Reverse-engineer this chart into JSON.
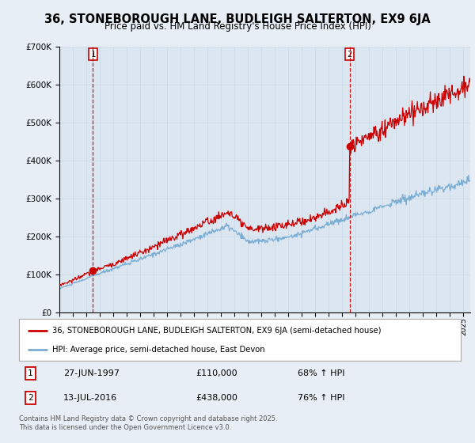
{
  "title": "36, STONEBOROUGH LANE, BUDLEIGH SALTERTON, EX9 6JA",
  "subtitle": "Price paid vs. HM Land Registry's House Price Index (HPI)",
  "bg_color": "#e8eef5",
  "plot_bg_color": "#dce6f0",
  "sale1_date": 1997.49,
  "sale1_price": 110000,
  "sale1_label": "1",
  "sale2_date": 2016.54,
  "sale2_price": 438000,
  "sale2_label": "2",
  "legend_line1": "36, STONEBOROUGH LANE, BUDLEIGH SALTERTON, EX9 6JA (semi-detached house)",
  "legend_line2": "HPI: Average price, semi-detached house, East Devon",
  "table_row1": [
    "1",
    "27-JUN-1997",
    "£110,000",
    "68% ↑ HPI"
  ],
  "table_row2": [
    "2",
    "13-JUL-2016",
    "£438,000",
    "76% ↑ HPI"
  ],
  "footer": "Contains HM Land Registry data © Crown copyright and database right 2025.\nThis data is licensed under the Open Government Licence v3.0.",
  "red_color": "#cc0000",
  "blue_color": "#7aadd4",
  "ylim_max": 700000,
  "xmin": 1995,
  "xmax": 2025.5
}
